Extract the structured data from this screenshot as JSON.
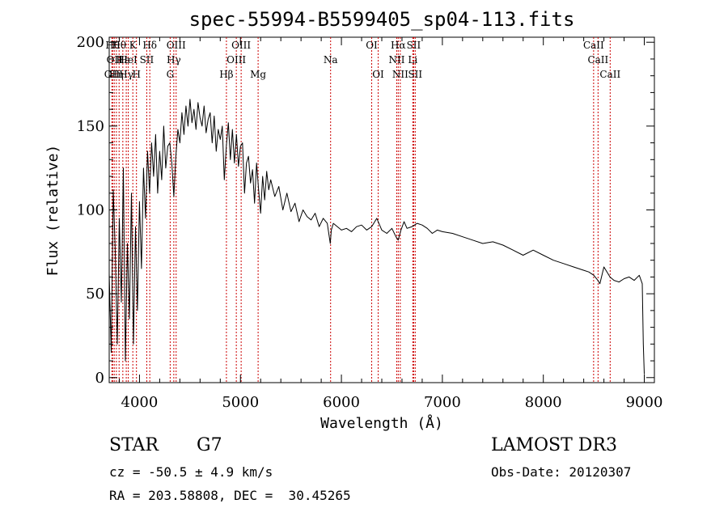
{
  "chart_data": {
    "type": "line",
    "title": "spec-55994-B5599405_sp04-113.fits",
    "xlabel": "Wavelength (Å)",
    "ylabel": "Flux (relative)",
    "xlim": [
      3700,
      9100
    ],
    "ylim": [
      -3,
      203
    ],
    "xticks": [
      4000,
      5000,
      6000,
      7000,
      8000,
      9000
    ],
    "yticks": [
      0,
      50,
      100,
      150,
      200
    ],
    "grid": false,
    "line_color": "#000000",
    "marker_color": "#cc0000",
    "series": [
      {
        "name": "flux",
        "x": [
          3700,
          3720,
          3740,
          3760,
          3780,
          3800,
          3820,
          3840,
          3860,
          3880,
          3900,
          3920,
          3940,
          3960,
          3980,
          4000,
          4020,
          4040,
          4060,
          4080,
          4100,
          4120,
          4140,
          4160,
          4180,
          4200,
          4220,
          4240,
          4260,
          4280,
          4300,
          4320,
          4340,
          4360,
          4380,
          4400,
          4420,
          4440,
          4460,
          4480,
          4500,
          4520,
          4540,
          4560,
          4580,
          4600,
          4620,
          4640,
          4660,
          4680,
          4700,
          4720,
          4740,
          4760,
          4780,
          4800,
          4820,
          4840,
          4860,
          4880,
          4900,
          4920,
          4940,
          4960,
          4980,
          5000,
          5020,
          5040,
          5060,
          5080,
          5100,
          5120,
          5140,
          5160,
          5180,
          5200,
          5220,
          5240,
          5260,
          5280,
          5300,
          5340,
          5380,
          5420,
          5460,
          5500,
          5540,
          5580,
          5620,
          5660,
          5700,
          5740,
          5780,
          5820,
          5860,
          5890,
          5900,
          5920,
          5960,
          6000,
          6050,
          6100,
          6150,
          6200,
          6250,
          6300,
          6350,
          6400,
          6450,
          6500,
          6540,
          6563,
          6590,
          6620,
          6650,
          6700,
          6750,
          6800,
          6850,
          6900,
          6950,
          7000,
          7100,
          7200,
          7300,
          7400,
          7500,
          7600,
          7700,
          7800,
          7900,
          8000,
          8100,
          8200,
          8300,
          8400,
          8450,
          8500,
          8540,
          8560,
          8600,
          8660,
          8700,
          8750,
          8800,
          8850,
          8900,
          8950,
          8980,
          8990,
          9000
        ],
        "y": [
          62,
          15,
          112,
          75,
          20,
          95,
          45,
          125,
          10,
          80,
          35,
          110,
          20,
          90,
          40,
          105,
          65,
          125,
          95,
          135,
          110,
          140,
          120,
          145,
          110,
          135,
          118,
          150,
          125,
          138,
          140,
          128,
          108,
          132,
          148,
          140,
          158,
          145,
          162,
          150,
          166,
          152,
          160,
          148,
          164,
          155,
          150,
          162,
          146,
          154,
          158,
          140,
          156,
          135,
          148,
          142,
          150,
          118,
          138,
          152,
          130,
          148,
          128,
          145,
          126,
          138,
          140,
          110,
          128,
          132,
          116,
          124,
          104,
          128,
          112,
          98,
          120,
          106,
          123,
          112,
          118,
          108,
          114,
          100,
          110,
          99,
          104,
          93,
          100,
          96,
          94,
          98,
          90,
          95,
          92,
          80,
          88,
          92,
          90,
          88,
          89,
          87,
          90,
          91,
          88,
          90,
          95,
          88,
          86,
          89,
          84,
          82,
          88,
          93,
          89,
          90,
          92,
          91,
          89,
          86,
          88,
          87,
          86,
          84,
          82,
          80,
          81,
          79,
          76,
          73,
          76,
          73,
          70,
          68,
          66,
          64,
          63,
          61,
          58,
          56,
          66,
          60,
          58,
          57,
          59,
          60,
          58,
          61,
          56,
          20,
          2
        ]
      }
    ],
    "line_markers": [
      {
        "x": 3727,
        "label": "OII",
        "row": 2
      },
      {
        "x": 3734,
        "label": "Hθ",
        "row": 0
      },
      {
        "x": 3750,
        "label": "OII",
        "row": 1
      },
      {
        "x": 3771,
        "label": "Hη",
        "row": 2
      },
      {
        "x": 3798,
        "label": "Hθ",
        "row": 0
      },
      {
        "x": 3835,
        "label": "Hε",
        "row": 1
      },
      {
        "x": 3869,
        "label": "Hγ",
        "row": 2
      },
      {
        "x": 3889,
        "label": "HeI",
        "row": 1
      },
      {
        "x": 3934,
        "label": "K",
        "row": 0
      },
      {
        "x": 3970,
        "label": "H",
        "row": 2
      },
      {
        "x": 4072,
        "label": "SII",
        "row": 1
      },
      {
        "x": 4102,
        "label": "Hδ",
        "row": 0
      },
      {
        "x": 4304,
        "label": "G",
        "row": 2
      },
      {
        "x": 4340,
        "label": "Hγ",
        "row": 1
      },
      {
        "x": 4363,
        "label": "OIII",
        "row": 0
      },
      {
        "x": 4861,
        "label": "Hβ",
        "row": 2
      },
      {
        "x": 4959,
        "label": "OIII",
        "row": 1
      },
      {
        "x": 5007,
        "label": "OIII",
        "row": 0
      },
      {
        "x": 5175,
        "label": "Mg",
        "row": 2
      },
      {
        "x": 5893,
        "label": "Na",
        "row": 1
      },
      {
        "x": 6300,
        "label": "OI",
        "row": 0
      },
      {
        "x": 6364,
        "label": "OI",
        "row": 2
      },
      {
        "x": 6548,
        "label": "NII",
        "row": 1
      },
      {
        "x": 6563,
        "label": "Hα",
        "row": 0
      },
      {
        "x": 6583,
        "label": "NII",
        "row": 2
      },
      {
        "x": 6707,
        "label": "Li",
        "row": 1
      },
      {
        "x": 6716,
        "label": "SII",
        "row": 0
      },
      {
        "x": 6731,
        "label": "SII",
        "row": 2
      },
      {
        "x": 8498,
        "label": "CaII",
        "row": 0
      },
      {
        "x": 8542,
        "label": "CaII",
        "row": 1
      },
      {
        "x": 8662,
        "label": "CaII",
        "row": 2
      }
    ]
  },
  "info": {
    "object_class": "STAR",
    "subclass": "G7",
    "redshift": "cz = -50.5 ± 4.9 km/s",
    "coords": "RA = 203.58808, DEC =  30.45265",
    "survey": "LAMOST DR3",
    "obs_date": "Obs-Date: 20120307"
  }
}
